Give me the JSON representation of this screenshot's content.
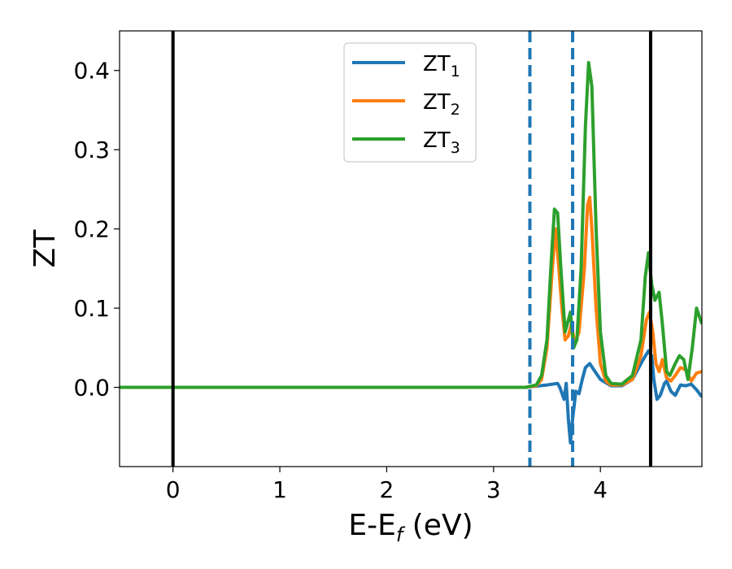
{
  "chart_data": {
    "type": "line",
    "xlabel": "E-E",
    "xlabel_sub": "f",
    "xlabel_unit": " (eV)",
    "ylabel": "ZT",
    "xlim": [
      -0.5,
      4.95
    ],
    "ylim": [
      -0.1,
      0.45
    ],
    "xticks": [
      0,
      1,
      2,
      3,
      4
    ],
    "xtick_labels": [
      "0",
      "1",
      "2",
      "3",
      "4"
    ],
    "yticks": [
      0.0,
      0.1,
      0.2,
      0.3,
      0.4
    ],
    "ytick_labels": [
      "0.0",
      "0.1",
      "0.2",
      "0.3",
      "0.4"
    ],
    "legend_position": "top-center",
    "grid": false,
    "vlines": [
      {
        "x": 0.0,
        "style": "solid",
        "color": "#000000"
      },
      {
        "x": 4.47,
        "style": "solid",
        "color": "#000000"
      },
      {
        "x": 3.34,
        "style": "dashed",
        "color": "#1f77b4"
      },
      {
        "x": 3.74,
        "style": "dashed",
        "color": "#1f77b4"
      }
    ],
    "series": [
      {
        "name": "ZT",
        "sub": "1",
        "color": "#1f77b4",
        "points": [
          [
            -0.5,
            0
          ],
          [
            3.3,
            0
          ],
          [
            3.5,
            0.003
          ],
          [
            3.6,
            0.005
          ],
          [
            3.62,
            0.0
          ],
          [
            3.66,
            -0.015
          ],
          [
            3.68,
            0.005
          ],
          [
            3.7,
            -0.04
          ],
          [
            3.72,
            -0.07
          ],
          [
            3.74,
            -0.04
          ],
          [
            3.77,
            -0.005
          ],
          [
            3.8,
            -0.008
          ],
          [
            3.83,
            0.01
          ],
          [
            3.86,
            0.025
          ],
          [
            3.9,
            0.03
          ],
          [
            3.95,
            0.02
          ],
          [
            4.0,
            0.01
          ],
          [
            4.1,
            0.002
          ],
          [
            4.2,
            0.002
          ],
          [
            4.3,
            0.01
          ],
          [
            4.4,
            0.035
          ],
          [
            4.45,
            0.046
          ],
          [
            4.48,
            0.04
          ],
          [
            4.5,
            0.01
          ],
          [
            4.53,
            -0.015
          ],
          [
            4.56,
            -0.01
          ],
          [
            4.6,
            0.005
          ],
          [
            4.62,
            0.008
          ],
          [
            4.66,
            -0.005
          ],
          [
            4.7,
            -0.01
          ],
          [
            4.75,
            0.003
          ],
          [
            4.8,
            0.002
          ],
          [
            4.85,
            0.004
          ],
          [
            4.9,
            -0.003
          ],
          [
            4.95,
            -0.012
          ]
        ]
      },
      {
        "name": "ZT",
        "sub": "2",
        "color": "#ff7f0e",
        "points": [
          [
            -0.5,
            0
          ],
          [
            3.3,
            0
          ],
          [
            3.4,
            0.002
          ],
          [
            3.45,
            0.01
          ],
          [
            3.5,
            0.05
          ],
          [
            3.55,
            0.15
          ],
          [
            3.58,
            0.2
          ],
          [
            3.6,
            0.17
          ],
          [
            3.64,
            0.1
          ],
          [
            3.67,
            0.06
          ],
          [
            3.7,
            0.065
          ],
          [
            3.73,
            0.08
          ],
          [
            3.76,
            0.055
          ],
          [
            3.8,
            0.07
          ],
          [
            3.85,
            0.15
          ],
          [
            3.88,
            0.23
          ],
          [
            3.9,
            0.24
          ],
          [
            3.92,
            0.2
          ],
          [
            3.96,
            0.1
          ],
          [
            4.0,
            0.03
          ],
          [
            4.05,
            0.008
          ],
          [
            4.1,
            0.003
          ],
          [
            4.2,
            0.003
          ],
          [
            4.3,
            0.01
          ],
          [
            4.38,
            0.04
          ],
          [
            4.43,
            0.085
          ],
          [
            4.46,
            0.095
          ],
          [
            4.49,
            0.07
          ],
          [
            4.52,
            0.03
          ],
          [
            4.55,
            0.02
          ],
          [
            4.58,
            0.035
          ],
          [
            4.62,
            0.012
          ],
          [
            4.66,
            0.008
          ],
          [
            4.7,
            0.015
          ],
          [
            4.75,
            0.025
          ],
          [
            4.8,
            0.022
          ],
          [
            4.85,
            0.008
          ],
          [
            4.9,
            0.018
          ],
          [
            4.95,
            0.02
          ]
        ]
      },
      {
        "name": "ZT",
        "sub": "3",
        "color": "#2ca02c",
        "points": [
          [
            -0.5,
            0
          ],
          [
            3.3,
            0
          ],
          [
            3.4,
            0.003
          ],
          [
            3.45,
            0.015
          ],
          [
            3.5,
            0.06
          ],
          [
            3.54,
            0.16
          ],
          [
            3.57,
            0.225
          ],
          [
            3.6,
            0.22
          ],
          [
            3.63,
            0.15
          ],
          [
            3.67,
            0.07
          ],
          [
            3.7,
            0.085
          ],
          [
            3.72,
            0.095
          ],
          [
            3.75,
            0.05
          ],
          [
            3.78,
            0.06
          ],
          [
            3.82,
            0.15
          ],
          [
            3.86,
            0.33
          ],
          [
            3.89,
            0.41
          ],
          [
            3.92,
            0.38
          ],
          [
            3.96,
            0.2
          ],
          [
            4.0,
            0.07
          ],
          [
            4.05,
            0.015
          ],
          [
            4.1,
            0.005
          ],
          [
            4.2,
            0.004
          ],
          [
            4.3,
            0.015
          ],
          [
            4.38,
            0.06
          ],
          [
            4.42,
            0.14
          ],
          [
            4.45,
            0.17
          ],
          [
            4.48,
            0.13
          ],
          [
            4.51,
            0.11
          ],
          [
            4.55,
            0.12
          ],
          [
            4.58,
            0.08
          ],
          [
            4.62,
            0.02
          ],
          [
            4.65,
            0.015
          ],
          [
            4.7,
            0.03
          ],
          [
            4.74,
            0.04
          ],
          [
            4.78,
            0.035
          ],
          [
            4.82,
            0.01
          ],
          [
            4.86,
            0.05
          ],
          [
            4.9,
            0.1
          ],
          [
            4.95,
            0.08
          ]
        ]
      }
    ]
  }
}
